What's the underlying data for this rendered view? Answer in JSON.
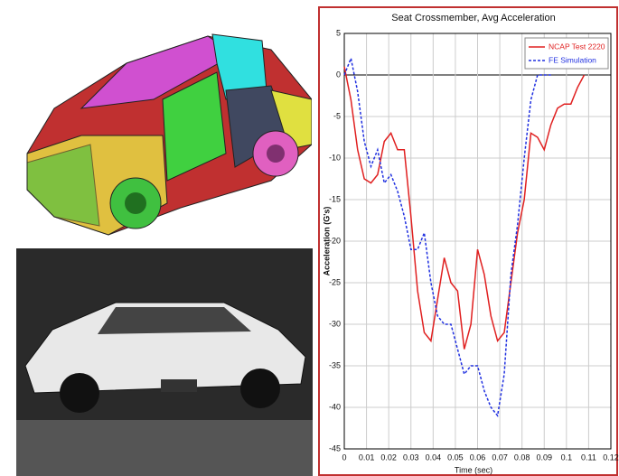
{
  "chart_data": {
    "type": "line",
    "title": "Seat Crossmember, Avg Acceleration",
    "x_label": "Time (sec)",
    "y_label": "Acceleration (G's)",
    "x": [
      0,
      0.003,
      0.006,
      0.009,
      0.012,
      0.015,
      0.018,
      0.021,
      0.024,
      0.027,
      0.03,
      0.033,
      0.036,
      0.039,
      0.042,
      0.045,
      0.048,
      0.051,
      0.054,
      0.057,
      0.06,
      0.063,
      0.066,
      0.069,
      0.072,
      0.075,
      0.078,
      0.081,
      0.084,
      0.087,
      0.09,
      0.093,
      0.096,
      0.099,
      0.102,
      0.105,
      0.108
    ],
    "series": [
      {
        "name": "NCAP Test 2220",
        "color": "#e02020",
        "dash": false,
        "values": [
          1,
          -3,
          -9,
          -12.5,
          -13,
          -12,
          -8,
          -7,
          -9,
          -9,
          -17,
          -26,
          -31,
          -32,
          -27,
          -22,
          -25,
          -26,
          -33,
          -30,
          -21,
          -24,
          -29,
          -32,
          -31,
          -25,
          -19,
          -15,
          -7,
          -7.5,
          -9,
          -6,
          -4,
          -3.5,
          -3.5,
          -1.5,
          0
        ]
      },
      {
        "name": "FE Simulation",
        "color": "#2030e0",
        "dash": true,
        "values": [
          0,
          2,
          -2,
          -8,
          -11,
          -9,
          -13,
          -12,
          -14,
          -17,
          -21,
          -21,
          -19,
          -25,
          -29,
          -30,
          -30,
          -33,
          -36,
          -35,
          -35,
          -38,
          -40,
          -41,
          -36,
          -24,
          -18,
          -10,
          -3,
          0,
          0,
          0,
          null,
          null,
          null,
          null,
          null
        ]
      }
    ],
    "xlim": [
      0,
      0.12
    ],
    "ylim": [
      -45,
      5
    ],
    "xticks": [
      0,
      0.01,
      0.02,
      0.03,
      0.04,
      0.05,
      0.06,
      0.07,
      0.08,
      0.09,
      0.1,
      0.11,
      0.12
    ],
    "yticks": [
      5,
      0,
      -5,
      -10,
      -15,
      -20,
      -25,
      -30,
      -35,
      -40,
      -45
    ],
    "grid": true,
    "legend": "top-right"
  }
}
